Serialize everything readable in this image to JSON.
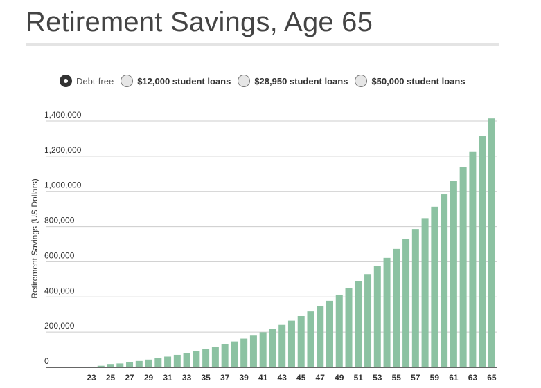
{
  "title": "Retirement Savings, Age 65",
  "legend": {
    "options": [
      {
        "label": "Debt-free",
        "selected": true
      },
      {
        "label": "$12,000 student loans",
        "selected": false
      },
      {
        "label": "$28,950 student loans",
        "selected": false
      },
      {
        "label": "$50,000 student loans",
        "selected": false
      }
    ]
  },
  "colors": {
    "bar": "#8cc2a2",
    "grid": "#cccccc",
    "axis": "#333333"
  },
  "chart_data": {
    "type": "bar",
    "ylabel": "Retirement Savings (US Dollars)",
    "xlabel": "",
    "ylim": [
      0,
      1400000
    ],
    "yticks": [
      0,
      200000,
      400000,
      600000,
      800000,
      1000000,
      1200000,
      1400000
    ],
    "ytick_labels": [
      "0",
      "200,000",
      "400,000",
      "600,000",
      "800,000",
      "1,000,000",
      "1,200,000",
      "1,400,000"
    ],
    "xtick_labels": [
      "23",
      "25",
      "27",
      "29",
      "31",
      "33",
      "35",
      "37",
      "39",
      "41",
      "43",
      "45",
      "47",
      "49",
      "51",
      "53",
      "55",
      "57",
      "59",
      "61",
      "63",
      "65"
    ],
    "grid": true,
    "series": [
      {
        "name": "Debt-free",
        "categories": [
          23,
          24,
          25,
          26,
          27,
          28,
          29,
          30,
          31,
          32,
          33,
          34,
          35,
          36,
          37,
          38,
          39,
          40,
          41,
          42,
          43,
          44,
          45,
          46,
          47,
          48,
          49,
          50,
          51,
          52,
          53,
          54,
          55,
          56,
          57,
          58,
          59,
          60,
          61,
          62,
          63,
          64,
          65
        ],
        "values": [
          4000,
          9000,
          15000,
          22000,
          29000,
          36000,
          44000,
          52000,
          61000,
          71000,
          82000,
          93000,
          105000,
          118000,
          132000,
          147000,
          163000,
          180000,
          199000,
          219000,
          241000,
          265000,
          291000,
          318000,
          347000,
          378000,
          413000,
          450000,
          489000,
          530000,
          575000,
          622000,
          673000,
          728000,
          786000,
          848000,
          913000,
          983000,
          1058000,
          1138000,
          1224000,
          1316000,
          1415000
        ]
      }
    ]
  }
}
